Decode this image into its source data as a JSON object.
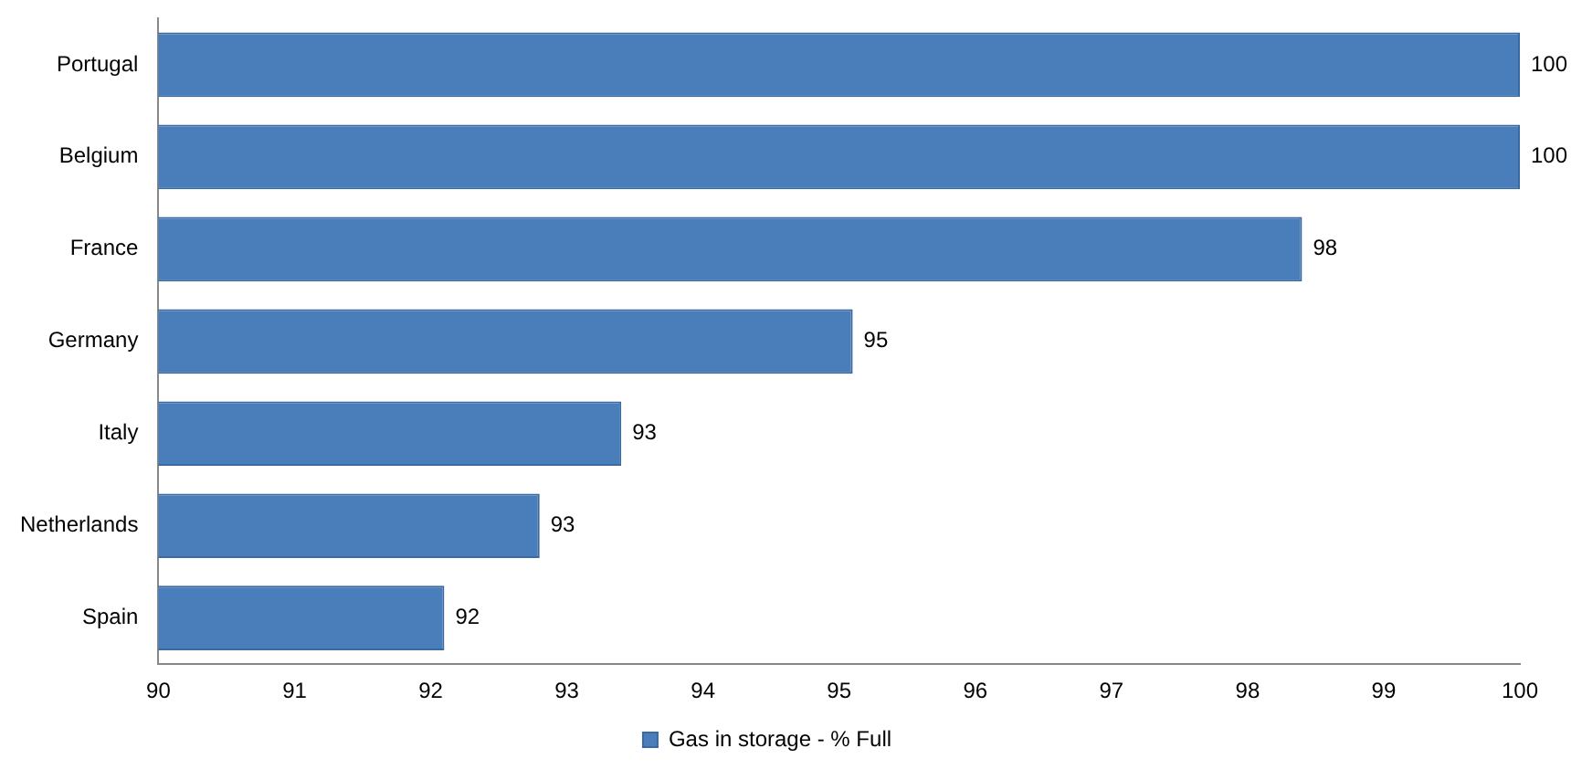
{
  "chart_data": {
    "type": "bar",
    "orientation": "horizontal",
    "categories": [
      "Portugal",
      "Belgium",
      "France",
      "Germany",
      "Italy",
      "Netherlands",
      "Spain"
    ],
    "series": [
      {
        "name": "Gas in storage - % Full",
        "color": "#4a7ebb",
        "values": [
          100,
          100,
          98.4,
          95.1,
          93.4,
          92.8,
          92.1
        ],
        "value_labels": [
          "100",
          "100",
          "98",
          "95",
          "93",
          "93",
          "92"
        ]
      }
    ],
    "xlim": [
      90,
      100
    ],
    "xticks": [
      90,
      91,
      92,
      93,
      94,
      95,
      96,
      97,
      98,
      99,
      100
    ],
    "grid": false,
    "legend": "bottom"
  }
}
